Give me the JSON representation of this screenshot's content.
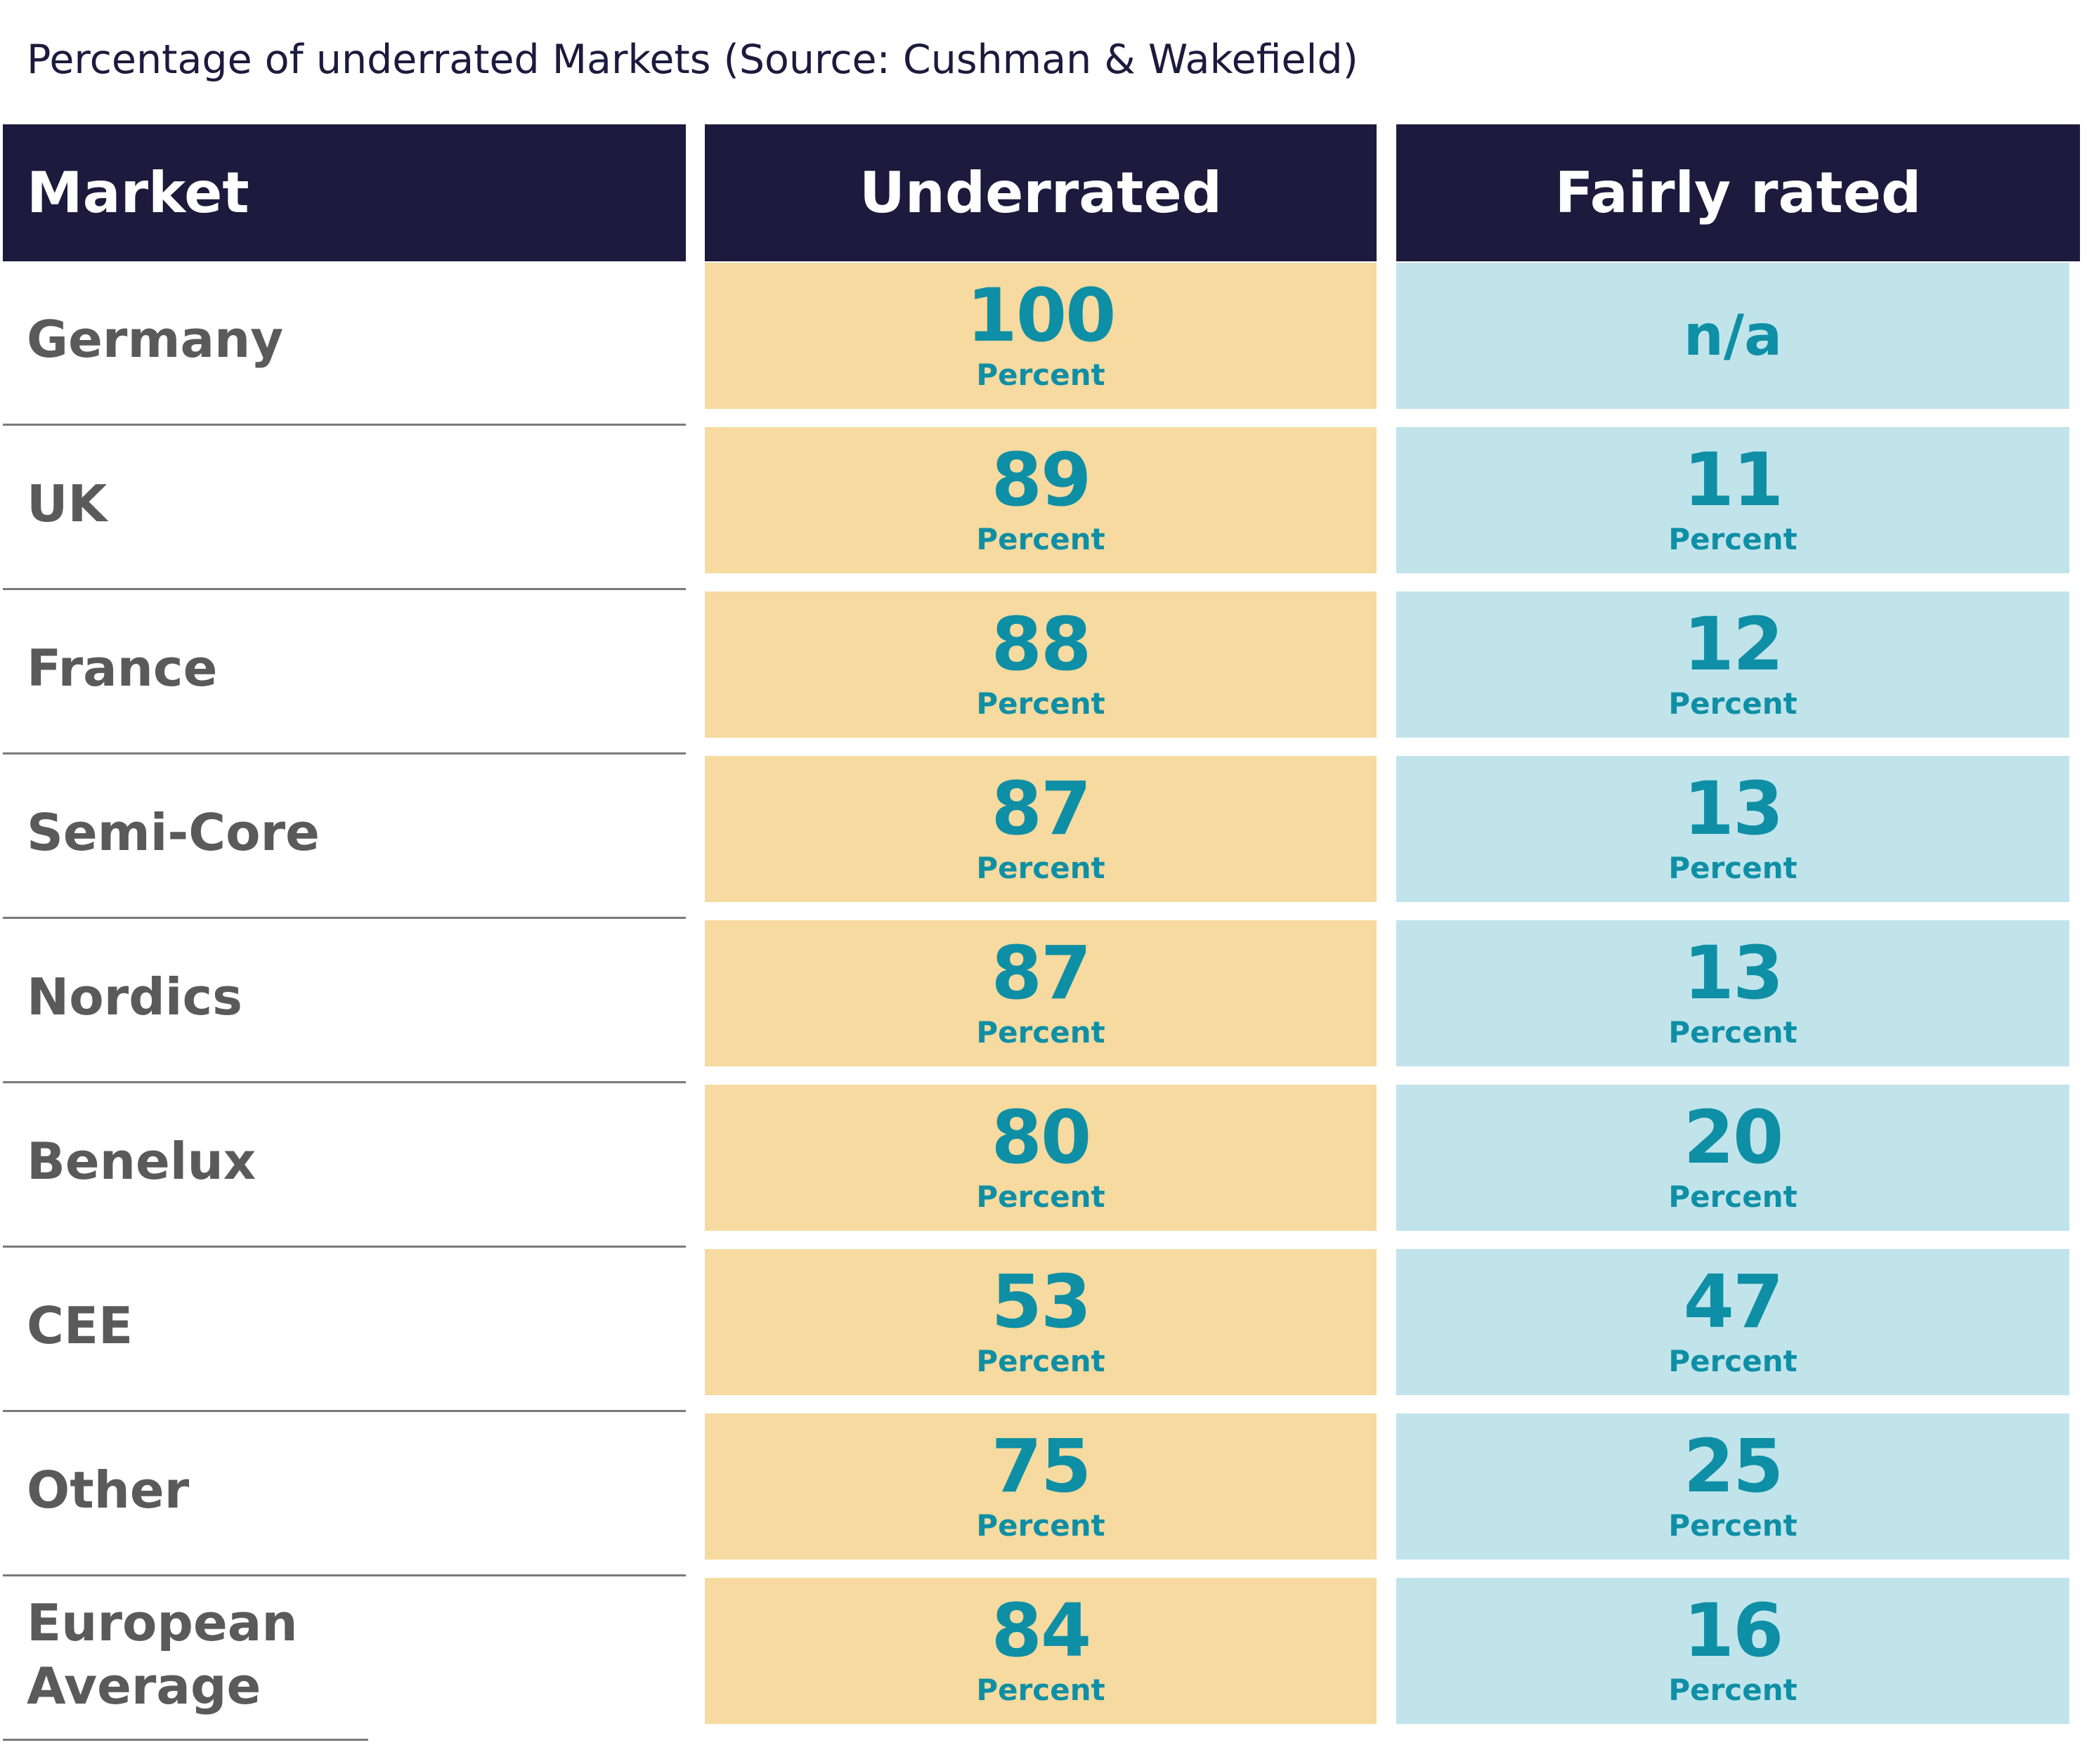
{
  "chart_data": {
    "type": "table",
    "title": "Percentage of underrated Markets (Source: Cushman & Wakefield)",
    "columns": [
      "Market",
      "Underrated",
      "Fairly rated"
    ],
    "unit": "Percent",
    "rows": [
      {
        "market": "Germany",
        "underrated": "100",
        "fairly_rated": "n/a"
      },
      {
        "market": "UK",
        "underrated": "89",
        "fairly_rated": "11"
      },
      {
        "market": "France",
        "underrated": "88",
        "fairly_rated": "12"
      },
      {
        "market": "Semi-Core",
        "underrated": "87",
        "fairly_rated": "13"
      },
      {
        "market": "Nordics",
        "underrated": "87",
        "fairly_rated": "13"
      },
      {
        "market": "Benelux",
        "underrated": "80",
        "fairly_rated": "20"
      },
      {
        "market": "CEE",
        "underrated": "53",
        "fairly_rated": "47"
      },
      {
        "market": "Other",
        "underrated": "75",
        "fairly_rated": "25"
      },
      {
        "market": "European Average",
        "underrated": "84",
        "fairly_rated": "16"
      }
    ]
  },
  "colors": {
    "header_bg": "#1e1a3d",
    "underrated_bg": "#f6da9f",
    "fairly_rated_bg": "#c1e4eb",
    "value_text": "#0f8fa5",
    "label_text": "#5a5a5a"
  }
}
